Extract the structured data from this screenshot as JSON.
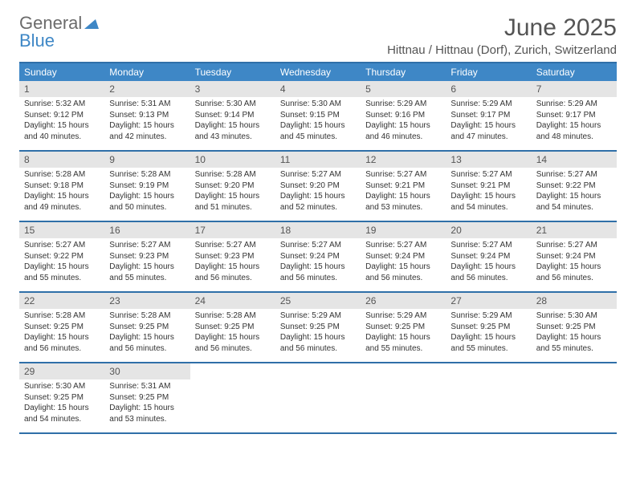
{
  "brand": {
    "part1": "General",
    "part2": "Blue"
  },
  "title": "June 2025",
  "location": "Hittnau / Hittnau (Dorf), Zurich, Switzerland",
  "colors": {
    "accent": "#3e87c6",
    "accent_dark": "#2f6fa8",
    "daynum_bg": "#e5e5e5",
    "text": "#333333",
    "muted": "#6b6b6b"
  },
  "day_labels": [
    "Sunday",
    "Monday",
    "Tuesday",
    "Wednesday",
    "Thursday",
    "Friday",
    "Saturday"
  ],
  "weeks": [
    [
      {
        "n": "1",
        "sunrise": "5:32 AM",
        "sunset": "9:12 PM",
        "dl": "15 hours and 40 minutes."
      },
      {
        "n": "2",
        "sunrise": "5:31 AM",
        "sunset": "9:13 PM",
        "dl": "15 hours and 42 minutes."
      },
      {
        "n": "3",
        "sunrise": "5:30 AM",
        "sunset": "9:14 PM",
        "dl": "15 hours and 43 minutes."
      },
      {
        "n": "4",
        "sunrise": "5:30 AM",
        "sunset": "9:15 PM",
        "dl": "15 hours and 45 minutes."
      },
      {
        "n": "5",
        "sunrise": "5:29 AM",
        "sunset": "9:16 PM",
        "dl": "15 hours and 46 minutes."
      },
      {
        "n": "6",
        "sunrise": "5:29 AM",
        "sunset": "9:17 PM",
        "dl": "15 hours and 47 minutes."
      },
      {
        "n": "7",
        "sunrise": "5:29 AM",
        "sunset": "9:17 PM",
        "dl": "15 hours and 48 minutes."
      }
    ],
    [
      {
        "n": "8",
        "sunrise": "5:28 AM",
        "sunset": "9:18 PM",
        "dl": "15 hours and 49 minutes."
      },
      {
        "n": "9",
        "sunrise": "5:28 AM",
        "sunset": "9:19 PM",
        "dl": "15 hours and 50 minutes."
      },
      {
        "n": "10",
        "sunrise": "5:28 AM",
        "sunset": "9:20 PM",
        "dl": "15 hours and 51 minutes."
      },
      {
        "n": "11",
        "sunrise": "5:27 AM",
        "sunset": "9:20 PM",
        "dl": "15 hours and 52 minutes."
      },
      {
        "n": "12",
        "sunrise": "5:27 AM",
        "sunset": "9:21 PM",
        "dl": "15 hours and 53 minutes."
      },
      {
        "n": "13",
        "sunrise": "5:27 AM",
        "sunset": "9:21 PM",
        "dl": "15 hours and 54 minutes."
      },
      {
        "n": "14",
        "sunrise": "5:27 AM",
        "sunset": "9:22 PM",
        "dl": "15 hours and 54 minutes."
      }
    ],
    [
      {
        "n": "15",
        "sunrise": "5:27 AM",
        "sunset": "9:22 PM",
        "dl": "15 hours and 55 minutes."
      },
      {
        "n": "16",
        "sunrise": "5:27 AM",
        "sunset": "9:23 PM",
        "dl": "15 hours and 55 minutes."
      },
      {
        "n": "17",
        "sunrise": "5:27 AM",
        "sunset": "9:23 PM",
        "dl": "15 hours and 56 minutes."
      },
      {
        "n": "18",
        "sunrise": "5:27 AM",
        "sunset": "9:24 PM",
        "dl": "15 hours and 56 minutes."
      },
      {
        "n": "19",
        "sunrise": "5:27 AM",
        "sunset": "9:24 PM",
        "dl": "15 hours and 56 minutes."
      },
      {
        "n": "20",
        "sunrise": "5:27 AM",
        "sunset": "9:24 PM",
        "dl": "15 hours and 56 minutes."
      },
      {
        "n": "21",
        "sunrise": "5:27 AM",
        "sunset": "9:24 PM",
        "dl": "15 hours and 56 minutes."
      }
    ],
    [
      {
        "n": "22",
        "sunrise": "5:28 AM",
        "sunset": "9:25 PM",
        "dl": "15 hours and 56 minutes."
      },
      {
        "n": "23",
        "sunrise": "5:28 AM",
        "sunset": "9:25 PM",
        "dl": "15 hours and 56 minutes."
      },
      {
        "n": "24",
        "sunrise": "5:28 AM",
        "sunset": "9:25 PM",
        "dl": "15 hours and 56 minutes."
      },
      {
        "n": "25",
        "sunrise": "5:29 AM",
        "sunset": "9:25 PM",
        "dl": "15 hours and 56 minutes."
      },
      {
        "n": "26",
        "sunrise": "5:29 AM",
        "sunset": "9:25 PM",
        "dl": "15 hours and 55 minutes."
      },
      {
        "n": "27",
        "sunrise": "5:29 AM",
        "sunset": "9:25 PM",
        "dl": "15 hours and 55 minutes."
      },
      {
        "n": "28",
        "sunrise": "5:30 AM",
        "sunset": "9:25 PM",
        "dl": "15 hours and 55 minutes."
      }
    ],
    [
      {
        "n": "29",
        "sunrise": "5:30 AM",
        "sunset": "9:25 PM",
        "dl": "15 hours and 54 minutes."
      },
      {
        "n": "30",
        "sunrise": "5:31 AM",
        "sunset": "9:25 PM",
        "dl": "15 hours and 53 minutes."
      },
      {
        "blank": true
      },
      {
        "blank": true
      },
      {
        "blank": true
      },
      {
        "blank": true
      },
      {
        "blank": true
      }
    ]
  ],
  "labels": {
    "sunrise": "Sunrise: ",
    "sunset": "Sunset: ",
    "daylight": "Daylight: "
  }
}
